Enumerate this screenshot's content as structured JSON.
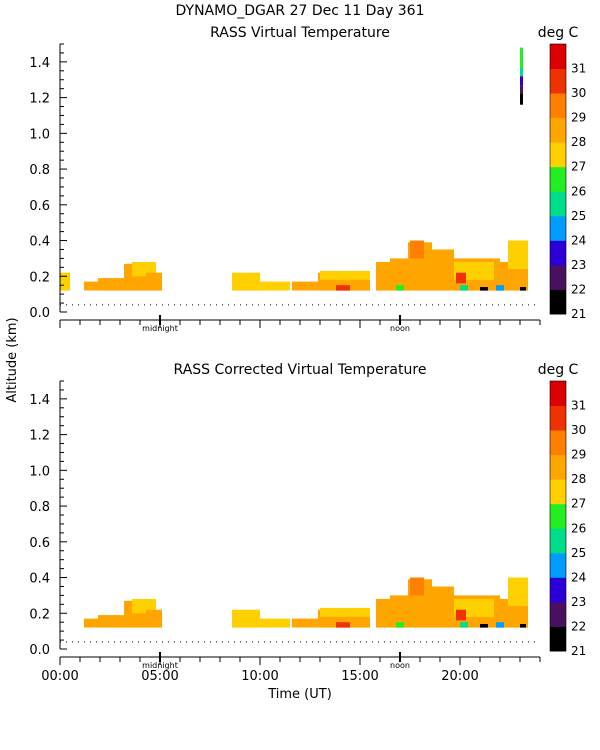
{
  "figure": {
    "title": "DYNAMO_DGAR  27 Dec 11 Day 361",
    "ylabel": "Altitude (km)",
    "xlabel": "Time (UT)"
  },
  "chart_data": [
    {
      "type": "heatmap",
      "title": "RASS Virtual Temperature",
      "colorbar_label": "deg C",
      "colorbar_ticks": [
        "31",
        "30",
        "29",
        "28",
        "27",
        "26",
        "25",
        "24",
        "23",
        "22",
        "21"
      ],
      "colorbar_range": [
        21,
        32
      ],
      "colors": [
        "#000000",
        "#4a1060",
        "#2b00d8",
        "#009cff",
        "#00dd88",
        "#22ee22",
        "#ffd000",
        "#ffa500",
        "#ff8000",
        "#ee3300",
        "#dd0000"
      ],
      "ylim": [
        0,
        1.5
      ],
      "yticks": [
        "0.0",
        "0.2",
        "0.4",
        "0.6",
        "0.8",
        "1.0",
        "1.2",
        "1.4"
      ],
      "xlim": [
        0,
        24
      ],
      "xticks": [
        "00:00",
        "05:00",
        "10:00",
        "15:00",
        "20:00"
      ],
      "markers": [
        "midnight",
        "noon"
      ],
      "blocks": [
        {
          "t0": 0.0,
          "t1": 0.5,
          "h0": 0.12,
          "h1": 0.22,
          "temp": 27.5
        },
        {
          "t0": 1.2,
          "t1": 1.9,
          "h0": 0.12,
          "h1": 0.17,
          "temp": 28.5
        },
        {
          "t0": 1.9,
          "t1": 3.2,
          "h0": 0.12,
          "h1": 0.19,
          "temp": 28.5
        },
        {
          "t0": 3.2,
          "t1": 4.3,
          "h0": 0.12,
          "h1": 0.27,
          "temp": 28.4
        },
        {
          "t0": 3.6,
          "t1": 4.8,
          "h0": 0.2,
          "h1": 0.28,
          "temp": 27.3
        },
        {
          "t0": 4.3,
          "t1": 5.1,
          "h0": 0.12,
          "h1": 0.22,
          "temp": 28.5
        },
        {
          "t0": 8.6,
          "t1": 10.0,
          "h0": 0.12,
          "h1": 0.22,
          "temp": 27.4
        },
        {
          "t0": 10.0,
          "t1": 11.5,
          "h0": 0.12,
          "h1": 0.17,
          "temp": 27.6
        },
        {
          "t0": 11.6,
          "t1": 12.9,
          "h0": 0.12,
          "h1": 0.17,
          "temp": 28.6
        },
        {
          "t0": 12.9,
          "t1": 15.5,
          "h0": 0.12,
          "h1": 0.22,
          "temp": 28.5
        },
        {
          "t0": 13.0,
          "t1": 15.5,
          "h0": 0.18,
          "h1": 0.23,
          "temp": 27.6
        },
        {
          "t0": 13.8,
          "t1": 14.5,
          "h0": 0.12,
          "h1": 0.15,
          "temp": 30.2
        },
        {
          "t0": 15.8,
          "t1": 16.5,
          "h0": 0.12,
          "h1": 0.28,
          "temp": 28.6
        },
        {
          "t0": 16.5,
          "t1": 22.0,
          "h0": 0.12,
          "h1": 0.3,
          "temp": 28.5
        },
        {
          "t0": 17.4,
          "t1": 18.6,
          "h0": 0.22,
          "h1": 0.39,
          "temp": 28.7
        },
        {
          "t0": 18.6,
          "t1": 19.7,
          "h0": 0.22,
          "h1": 0.35,
          "temp": 28.4
        },
        {
          "t0": 19.7,
          "t1": 21.7,
          "h0": 0.18,
          "h1": 0.28,
          "temp": 27.4
        },
        {
          "t0": 17.5,
          "t1": 18.2,
          "h0": 0.3,
          "h1": 0.4,
          "temp": 29.3
        },
        {
          "t0": 19.8,
          "t1": 20.3,
          "h0": 0.16,
          "h1": 0.22,
          "temp": 30.1
        },
        {
          "t0": 21.7,
          "t1": 23.4,
          "h0": 0.12,
          "h1": 0.28,
          "temp": 28.4
        },
        {
          "t0": 22.4,
          "t1": 23.4,
          "h0": 0.24,
          "h1": 0.4,
          "temp": 27.3
        },
        {
          "t0": 16.8,
          "t1": 17.2,
          "h0": 0.12,
          "h1": 0.15,
          "temp": 26.2
        },
        {
          "t0": 20.0,
          "t1": 20.4,
          "h0": 0.12,
          "h1": 0.15,
          "temp": 25.4
        },
        {
          "t0": 21.0,
          "t1": 21.4,
          "h0": 0.12,
          "h1": 0.14,
          "temp": 21.5
        },
        {
          "t0": 21.8,
          "t1": 22.2,
          "h0": 0.12,
          "h1": 0.15,
          "temp": 24.5
        },
        {
          "t0": 23.0,
          "t1": 23.3,
          "h0": 0.12,
          "h1": 0.14,
          "temp": 21.5
        },
        {
          "t0": 23.0,
          "t1": 23.15,
          "h0": 1.16,
          "h1": 1.22,
          "temp": 21.5
        },
        {
          "t0": 23.0,
          "t1": 23.15,
          "h0": 1.22,
          "h1": 1.27,
          "temp": 22.5
        },
        {
          "t0": 23.0,
          "t1": 23.15,
          "h0": 1.27,
          "h1": 1.32,
          "temp": 23.5
        },
        {
          "t0": 23.0,
          "t1": 23.15,
          "h0": 1.32,
          "h1": 1.37,
          "temp": 25.5
        },
        {
          "t0": 23.0,
          "t1": 23.15,
          "h0": 1.37,
          "h1": 1.48,
          "temp": 26.5
        }
      ]
    },
    {
      "type": "heatmap",
      "title": "RASS Corrected Virtual Temperature",
      "colorbar_label": "deg C",
      "colorbar_ticks": [
        "31",
        "30",
        "29",
        "28",
        "27",
        "26",
        "25",
        "24",
        "23",
        "22",
        "21"
      ],
      "colorbar_range": [
        21,
        32
      ],
      "colors": [
        "#000000",
        "#4a1060",
        "#2b00d8",
        "#009cff",
        "#00dd88",
        "#22ee22",
        "#ffd000",
        "#ffa500",
        "#ff8000",
        "#ee3300",
        "#dd0000"
      ],
      "ylim": [
        0,
        1.5
      ],
      "yticks": [
        "0.0",
        "0.2",
        "0.4",
        "0.6",
        "0.8",
        "1.0",
        "1.2",
        "1.4"
      ],
      "xlim": [
        0,
        24
      ],
      "xticks": [
        "00:00",
        "05:00",
        "10:00",
        "15:00",
        "20:00"
      ],
      "markers": [
        "midnight",
        "noon"
      ],
      "blocks": [
        {
          "t0": 1.2,
          "t1": 1.9,
          "h0": 0.12,
          "h1": 0.17,
          "temp": 28.5
        },
        {
          "t0": 1.9,
          "t1": 3.2,
          "h0": 0.12,
          "h1": 0.19,
          "temp": 28.5
        },
        {
          "t0": 3.2,
          "t1": 4.3,
          "h0": 0.12,
          "h1": 0.27,
          "temp": 28.4
        },
        {
          "t0": 3.6,
          "t1": 4.8,
          "h0": 0.2,
          "h1": 0.28,
          "temp": 27.3
        },
        {
          "t0": 4.3,
          "t1": 5.1,
          "h0": 0.12,
          "h1": 0.22,
          "temp": 28.5
        },
        {
          "t0": 8.6,
          "t1": 10.0,
          "h0": 0.12,
          "h1": 0.22,
          "temp": 27.4
        },
        {
          "t0": 10.0,
          "t1": 11.5,
          "h0": 0.12,
          "h1": 0.17,
          "temp": 27.6
        },
        {
          "t0": 11.6,
          "t1": 12.9,
          "h0": 0.12,
          "h1": 0.17,
          "temp": 28.6
        },
        {
          "t0": 12.9,
          "t1": 15.5,
          "h0": 0.12,
          "h1": 0.22,
          "temp": 28.5
        },
        {
          "t0": 13.0,
          "t1": 15.5,
          "h0": 0.18,
          "h1": 0.23,
          "temp": 27.6
        },
        {
          "t0": 13.8,
          "t1": 14.5,
          "h0": 0.12,
          "h1": 0.15,
          "temp": 30.2
        },
        {
          "t0": 15.8,
          "t1": 16.5,
          "h0": 0.12,
          "h1": 0.28,
          "temp": 28.6
        },
        {
          "t0": 16.5,
          "t1": 22.0,
          "h0": 0.12,
          "h1": 0.3,
          "temp": 28.5
        },
        {
          "t0": 17.4,
          "t1": 18.6,
          "h0": 0.22,
          "h1": 0.39,
          "temp": 28.7
        },
        {
          "t0": 18.6,
          "t1": 19.7,
          "h0": 0.22,
          "h1": 0.35,
          "temp": 28.4
        },
        {
          "t0": 19.7,
          "t1": 21.7,
          "h0": 0.18,
          "h1": 0.28,
          "temp": 27.4
        },
        {
          "t0": 17.5,
          "t1": 18.2,
          "h0": 0.3,
          "h1": 0.4,
          "temp": 29.3
        },
        {
          "t0": 19.8,
          "t1": 20.3,
          "h0": 0.16,
          "h1": 0.22,
          "temp": 30.1
        },
        {
          "t0": 21.7,
          "t1": 23.4,
          "h0": 0.12,
          "h1": 0.28,
          "temp": 28.4
        },
        {
          "t0": 22.4,
          "t1": 23.4,
          "h0": 0.24,
          "h1": 0.4,
          "temp": 27.3
        },
        {
          "t0": 16.8,
          "t1": 17.2,
          "h0": 0.12,
          "h1": 0.15,
          "temp": 26.2
        },
        {
          "t0": 20.0,
          "t1": 20.4,
          "h0": 0.12,
          "h1": 0.15,
          "temp": 25.4
        },
        {
          "t0": 21.0,
          "t1": 21.4,
          "h0": 0.12,
          "h1": 0.14,
          "temp": 21.5
        },
        {
          "t0": 21.8,
          "t1": 22.2,
          "h0": 0.12,
          "h1": 0.15,
          "temp": 24.5
        },
        {
          "t0": 23.0,
          "t1": 23.3,
          "h0": 0.12,
          "h1": 0.14,
          "temp": 21.5
        }
      ]
    }
  ]
}
